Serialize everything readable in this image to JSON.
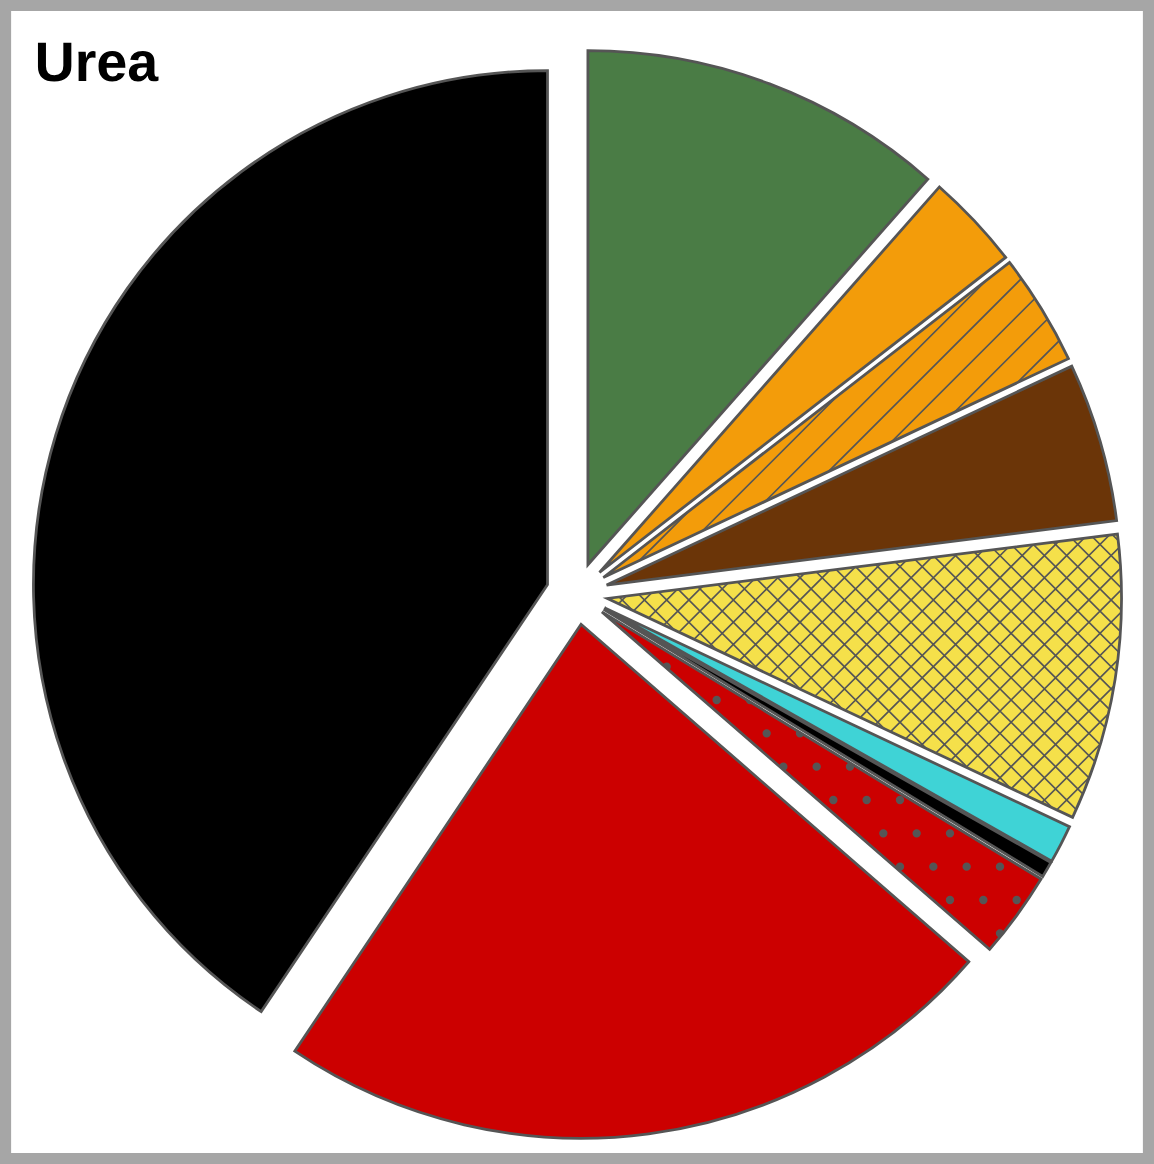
{
  "chart_data": {
    "type": "pie",
    "title": "Urea",
    "categories": [
      null,
      null,
      null,
      null,
      null,
      null,
      null,
      null,
      null,
      null
    ],
    "values": [
      11.5,
      3,
      3.5,
      5,
      9,
      1.2,
      0.5,
      2.7,
      23,
      40.6
    ],
    "colors": [
      "#4a7c45",
      "#f39c0a",
      "#f39c0a",
      "#6b3508",
      "#f5e04a",
      "#3fd3d6",
      "#000000",
      "#cc0000",
      "#cc0000",
      "#000000"
    ],
    "legend": false
  }
}
